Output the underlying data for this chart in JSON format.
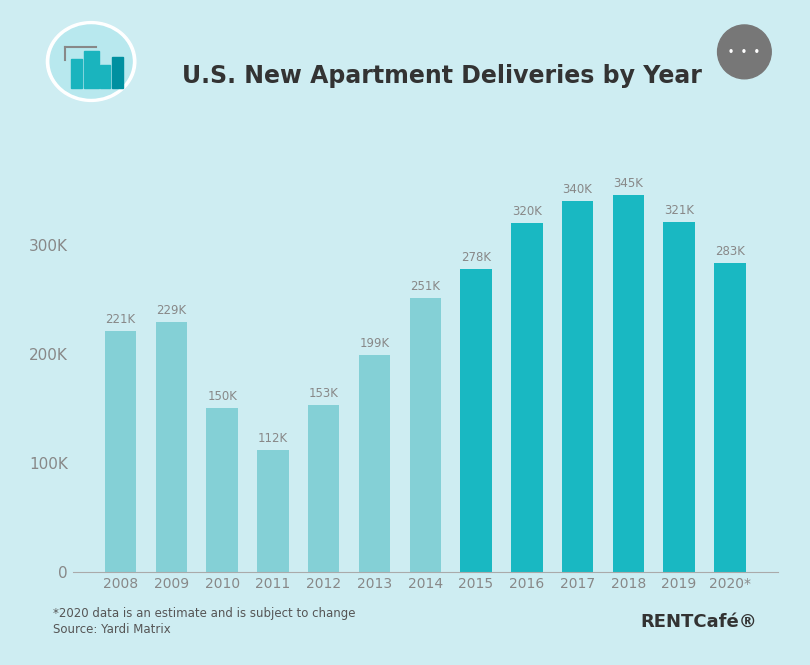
{
  "title": "U.S. New Apartment Deliveries by Year",
  "years": [
    "2008",
    "2009",
    "2010",
    "2011",
    "2012",
    "2013",
    "2014",
    "2015",
    "2016",
    "2017",
    "2018",
    "2019",
    "2020*"
  ],
  "values": [
    221000,
    229000,
    150000,
    112000,
    153000,
    199000,
    251000,
    278000,
    320000,
    340000,
    345000,
    321000,
    283000
  ],
  "labels": [
    "221K",
    "229K",
    "150K",
    "112K",
    "153K",
    "199K",
    "251K",
    "278K",
    "320K",
    "340K",
    "345K",
    "321K",
    "283K"
  ],
  "light_indices": [
    0,
    1,
    2,
    3,
    4,
    5,
    6
  ],
  "dark_indices": [
    7,
    8,
    9,
    10,
    11,
    12
  ],
  "background_color": "#ceedf2",
  "bar_color_light": "#84d0d6",
  "bar_color_dark": "#19b8c2",
  "ytick_labels": [
    "0",
    "100K",
    "200K",
    "300K"
  ],
  "ytick_values": [
    0,
    100000,
    200000,
    300000
  ],
  "ylim": [
    0,
    390000
  ],
  "footnote1": "*2020 data is an estimate and is subject to change",
  "footnote2": "Source: Yardi Matrix",
  "brand": "RENTCafé®",
  "label_color": "#888888",
  "axis_color": "#888888",
  "title_color": "#333333",
  "btn_color": "#777777"
}
